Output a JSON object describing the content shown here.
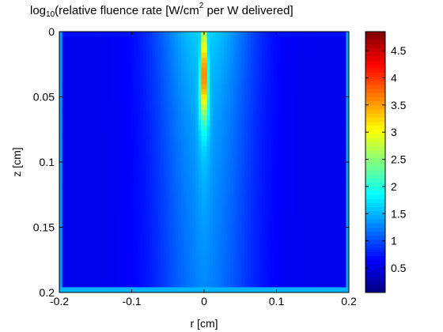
{
  "chart_data": {
    "type": "heatmap",
    "title": {
      "prefix": "log",
      "subscript": "10",
      "middle": "(relative fluence rate [W/cm",
      "superscript": "2",
      "suffix": " per W delivered]"
    },
    "xlabel": "r [cm]",
    "ylabel": "z [cm]",
    "xlim": [
      -0.2,
      0.2
    ],
    "ylim": [
      0,
      0.2
    ],
    "y_direction": "down",
    "x_ticks": [
      {
        "value": -0.2,
        "label": "-0.2"
      },
      {
        "value": -0.1,
        "label": "-0.1"
      },
      {
        "value": 0,
        "label": "0"
      },
      {
        "value": 0.1,
        "label": "0.1"
      },
      {
        "value": 0.2,
        "label": "0.2"
      }
    ],
    "y_ticks": [
      {
        "value": 0,
        "label": "0"
      },
      {
        "value": 0.05,
        "label": "0.05"
      },
      {
        "value": 0.1,
        "label": "0.1"
      },
      {
        "value": 0.15,
        "label": "0.15"
      },
      {
        "value": 0.2,
        "label": "0.2"
      }
    ],
    "colorbar": {
      "colormap": "jet",
      "range": [
        0.05,
        4.85
      ],
      "ticks": [
        {
          "value": 0.5,
          "label": "0.5"
        },
        {
          "value": 1,
          "label": "1"
        },
        {
          "value": 1.5,
          "label": "1.5"
        },
        {
          "value": 2,
          "label": "2"
        },
        {
          "value": 2.5,
          "label": "2.5"
        },
        {
          "value": 3,
          "label": "3"
        },
        {
          "value": 3.5,
          "label": "3.5"
        },
        {
          "value": 4,
          "label": "4"
        },
        {
          "value": 4.5,
          "label": "4.5"
        }
      ]
    },
    "field": {
      "r_step": 0.004,
      "z_step": 0.004,
      "background_level": 0.55,
      "beam_peak": 4.8,
      "beam_peak_depth": 0.035,
      "beam_core_width": 0.003,
      "halo_level": 1.45,
      "halo_width": 0.07,
      "surface_level": 0.7,
      "bottom_edge_level": 1.5,
      "side_edge_level": 1.4
    }
  }
}
